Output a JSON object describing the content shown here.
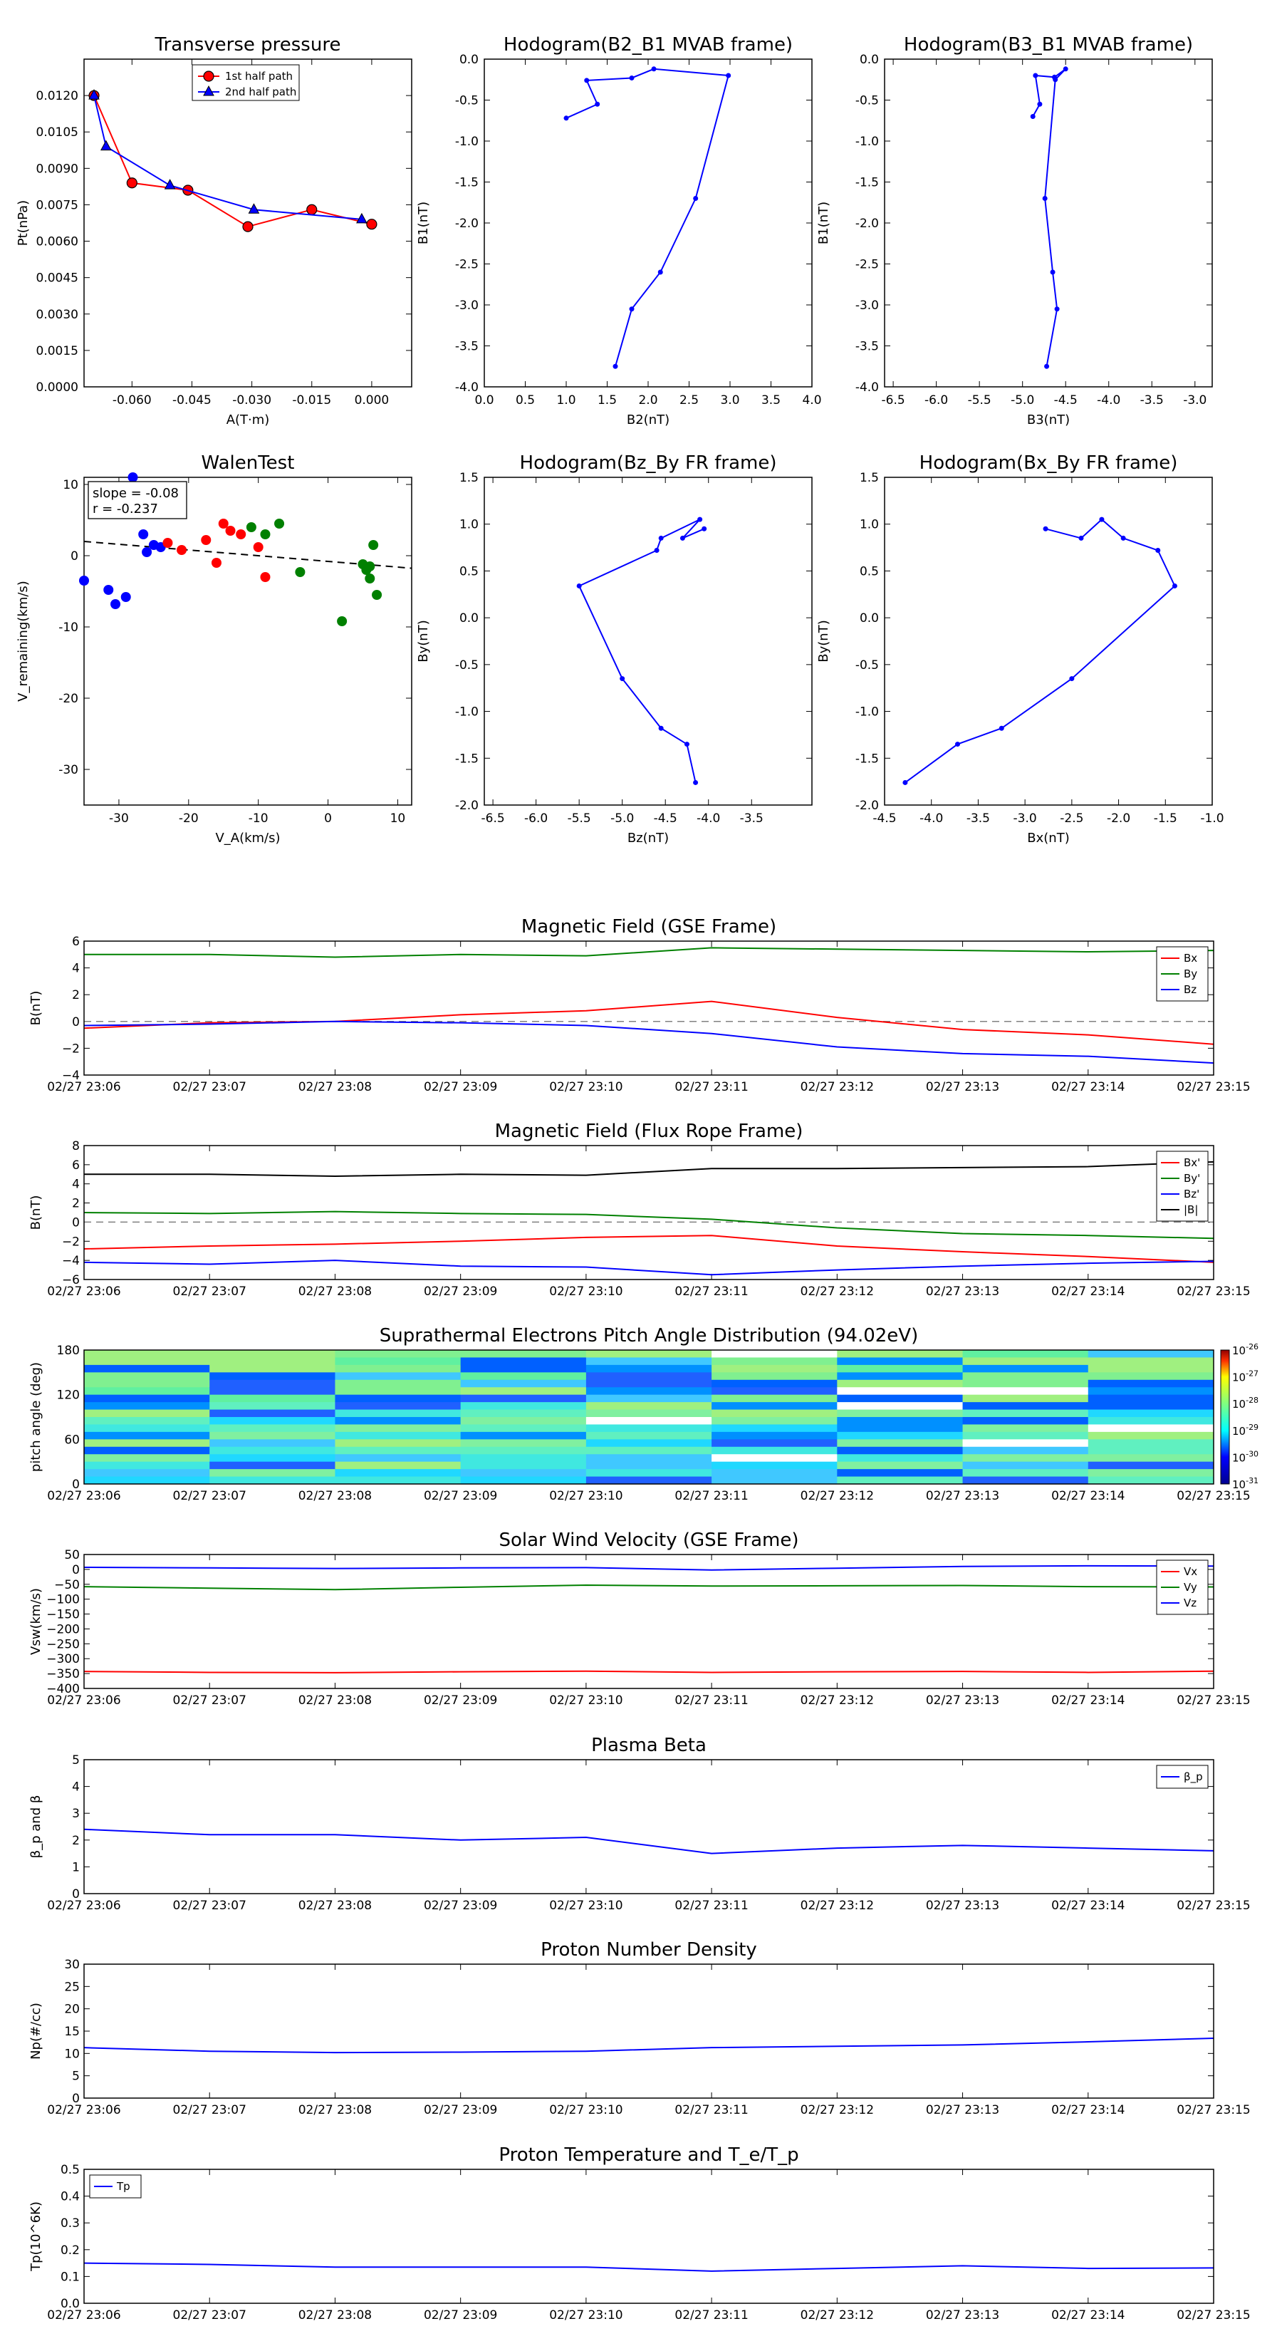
{
  "time_ticks": [
    "02/27 23:06",
    "02/27 23:07",
    "02/27 23:08",
    "02/27 23:09",
    "02/27 23:10",
    "02/27 23:11",
    "02/27 23:12",
    "02/27 23:13",
    "02/27 23:14",
    "02/27 23:15"
  ],
  "colors": {
    "red": "#ff0000",
    "green": "#008000",
    "blue": "#0000ff",
    "black": "#000000",
    "gray": "#808080"
  },
  "chart_data": [
    {
      "id": "pt",
      "type": "line",
      "title": "Transverse pressure",
      "xlabel": "A(T·m)",
      "ylabel": "Pt(nPa)",
      "xlim": [
        -0.072,
        0.01
      ],
      "ylim": [
        0,
        0.0135
      ],
      "xticks": [
        -0.06,
        -0.045,
        -0.03,
        -0.015,
        0.0
      ],
      "xtick_labels": [
        "-0.060",
        "-0.045",
        "-0.030",
        "-0.015",
        "0.000"
      ],
      "yticks": [
        0,
        0.0015,
        0.003,
        0.0045,
        0.006,
        0.0075,
        0.009,
        0.0105,
        0.012
      ],
      "ytick_labels": [
        "0.0000",
        "0.0015",
        "0.0030",
        "0.0045",
        "0.0060",
        "0.0075",
        "0.0090",
        "0.0105",
        "0.0120"
      ],
      "legend": "top-center",
      "series": [
        {
          "name": "1st half path",
          "color": "#ff0000",
          "marker": "circle",
          "x": [
            -0.0695,
            -0.06,
            -0.046,
            -0.031,
            -0.015,
            0.0
          ],
          "y": [
            0.012,
            0.0084,
            0.0081,
            0.0066,
            0.0073,
            0.0067
          ]
        },
        {
          "name": "2nd half path",
          "color": "#0000ff",
          "marker": "triangle",
          "x": [
            -0.0695,
            -0.0665,
            -0.0505,
            -0.0295,
            -0.0025
          ],
          "y": [
            0.012,
            0.0099,
            0.0083,
            0.0073,
            0.0069
          ]
        }
      ]
    },
    {
      "id": "h21",
      "type": "line",
      "title": "Hodogram(B2_B1 MVAB frame)",
      "xlabel": "B2(nT)",
      "ylabel": "B1(nT)",
      "xlim": [
        0,
        4
      ],
      "ylim": [
        -4,
        0
      ],
      "xticks": [
        0,
        0.5,
        1,
        1.5,
        2,
        2.5,
        3,
        3.5,
        4
      ],
      "xtick_labels": [
        "0.0",
        "0.5",
        "1.0",
        "1.5",
        "2.0",
        "2.5",
        "3.0",
        "3.5",
        "4.0"
      ],
      "yticks": [
        -4,
        -3.5,
        -3,
        -2.5,
        -2,
        -1.5,
        -1,
        -0.5,
        0
      ],
      "ytick_labels": [
        "-4.0",
        "-3.5",
        "-3.0",
        "-2.5",
        "-2.0",
        "-1.5",
        "-1.0",
        "-0.5",
        "0.0"
      ],
      "series": [
        {
          "color": "#0000ff",
          "marker": "dot",
          "x": [
            1.0,
            1.38,
            1.25,
            1.8,
            2.07,
            2.98,
            2.58,
            2.15,
            1.8,
            1.6
          ],
          "y": [
            -0.72,
            -0.55,
            -0.26,
            -0.23,
            -0.12,
            -0.2,
            -1.7,
            -2.6,
            -3.05,
            -3.75
          ]
        }
      ]
    },
    {
      "id": "h31",
      "type": "line",
      "title": "Hodogram(B3_B1 MVAB frame)",
      "xlabel": "B3(nT)",
      "ylabel": "B1(nT)",
      "xlim": [
        -6.6,
        -2.8
      ],
      "ylim": [
        -4,
        0
      ],
      "xticks": [
        -6.5,
        -6,
        -5.5,
        -5,
        -4.5,
        -4,
        -3.5,
        -3
      ],
      "xtick_labels": [
        "-6.5",
        "-6.0",
        "-5.5",
        "-5.0",
        "-4.5",
        "-4.0",
        "-3.5",
        "-3.0"
      ],
      "yticks": [
        -4,
        -3.5,
        -3,
        -2.5,
        -2,
        -1.5,
        -1,
        -0.5,
        0
      ],
      "ytick_labels": [
        "-4.0",
        "-3.5",
        "-3.0",
        "-2.5",
        "-2.0",
        "-1.5",
        "-1.0",
        "-0.5",
        "0.0"
      ],
      "series": [
        {
          "color": "#0000ff",
          "marker": "dot",
          "x": [
            -4.88,
            -4.8,
            -4.85,
            -4.63,
            -4.5,
            -4.62,
            -4.74,
            -4.65,
            -4.6,
            -4.72
          ],
          "y": [
            -0.7,
            -0.55,
            -0.2,
            -0.22,
            -0.12,
            -0.25,
            -1.7,
            -2.6,
            -3.05,
            -3.75
          ]
        }
      ]
    },
    {
      "id": "walen",
      "type": "scatter",
      "title": "WalenTest",
      "xlabel": "V_A(km/s)",
      "ylabel": "V_remaining(km/s)",
      "xlim": [
        -35,
        12
      ],
      "ylim": [
        -35,
        11
      ],
      "xticks": [
        -30,
        -20,
        -10,
        0,
        10
      ],
      "xtick_labels": [
        "-30",
        "-20",
        "-10",
        "0",
        "10"
      ],
      "yticks": [
        -30,
        -20,
        -10,
        0,
        10
      ],
      "ytick_labels": [
        "-30",
        "-20",
        "-10",
        "0",
        "10"
      ],
      "slope_text": "slope = -0.08",
      "r_text": "r = -0.237",
      "fit": {
        "slope": -0.08,
        "intercept": -0.8
      },
      "series": [
        {
          "color": "#0000ff",
          "x": [
            -35,
            -31.5,
            -30.5,
            -29,
            -28,
            -26.5,
            -26,
            -25,
            -24
          ],
          "y": [
            -3.5,
            -4.8,
            -6.8,
            -5.8,
            11,
            3,
            0.5,
            1.5,
            1.2
          ]
        },
        {
          "color": "#ff0000",
          "x": [
            -27,
            -23,
            -21,
            -17.5,
            -16,
            -15,
            -14,
            -12.5,
            -10,
            -9
          ],
          "y": [
            6,
            1.8,
            0.8,
            2.2,
            -1,
            4.5,
            3.5,
            3,
            1.2,
            -3
          ]
        },
        {
          "color": "#008000",
          "x": [
            -11,
            -9,
            -7,
            -4,
            2,
            5,
            5.5,
            6,
            6,
            6.5,
            7
          ],
          "y": [
            4,
            3,
            4.5,
            -2.3,
            -9.2,
            -1.2,
            -2,
            -3.2,
            -1.5,
            1.5,
            -5.5
          ]
        }
      ]
    },
    {
      "id": "hzy",
      "type": "line",
      "title": "Hodogram(Bz_By FR frame)",
      "xlabel": "Bz(nT)",
      "ylabel": "By(nT)",
      "xlim": [
        -6.6,
        -2.8
      ],
      "ylim": [
        -2,
        1.5
      ],
      "xticks": [
        -6.5,
        -6,
        -5.5,
        -5,
        -4.5,
        -4,
        -3.5
      ],
      "xtick_labels": [
        "-6.5",
        "-6.0",
        "-5.5",
        "-5.0",
        "-4.5",
        "-4.0",
        "-3.5"
      ],
      "yticks": [
        -2,
        -1.5,
        -1,
        -0.5,
        0,
        0.5,
        1,
        1.5
      ],
      "ytick_labels": [
        "-2.0",
        "-1.5",
        "-1.0",
        "-0.5",
        "0.0",
        "0.5",
        "1.0",
        "1.5"
      ],
      "series": [
        {
          "color": "#0000ff",
          "marker": "dot",
          "x": [
            -4.05,
            -4.3,
            -4.1,
            -4.55,
            -4.6,
            -5.5,
            -5.0,
            -4.55,
            -4.25,
            -4.15
          ],
          "y": [
            0.95,
            0.85,
            1.05,
            0.85,
            0.72,
            0.34,
            -0.65,
            -1.18,
            -1.35,
            -1.76
          ]
        }
      ]
    },
    {
      "id": "hxy",
      "type": "line",
      "title": "Hodogram(Bx_By FR frame)",
      "xlabel": "Bx(nT)",
      "ylabel": "By(nT)",
      "xlim": [
        -4.5,
        -1.0
      ],
      "ylim": [
        -2,
        1.5
      ],
      "xticks": [
        -4.5,
        -4,
        -3.5,
        -3,
        -2.5,
        -2,
        -1.5,
        -1
      ],
      "xtick_labels": [
        "-4.5",
        "-4.0",
        "-3.5",
        "-3.0",
        "-2.5",
        "-2.0",
        "-1.5",
        "-1.0"
      ],
      "yticks": [
        -2,
        -1.5,
        -1,
        -0.5,
        0,
        0.5,
        1,
        1.5
      ],
      "ytick_labels": [
        "-2.0",
        "-1.5",
        "-1.0",
        "-0.5",
        "0.0",
        "0.5",
        "1.0",
        "1.5"
      ],
      "series": [
        {
          "color": "#0000ff",
          "marker": "dot",
          "x": [
            -2.78,
            -2.4,
            -2.18,
            -1.95,
            -1.58,
            -1.4,
            -2.5,
            -3.25,
            -3.72,
            -4.28
          ],
          "y": [
            0.95,
            0.85,
            1.05,
            0.85,
            0.72,
            0.34,
            -0.65,
            -1.18,
            -1.35,
            -1.76
          ]
        }
      ]
    },
    {
      "id": "bgse",
      "type": "line",
      "title": "Magnetic Field (GSE Frame)",
      "ylabel": "B(nT)",
      "ylim": [
        -4,
        6
      ],
      "yticks": [
        -4,
        -2,
        0,
        2,
        4,
        6
      ],
      "ytick_labels": [
        "−4",
        "−2",
        "0",
        "2",
        "4",
        "6"
      ],
      "legend": "top-right",
      "zero_line": true,
      "series": [
        {
          "name": "Bx",
          "color": "#ff0000",
          "values": [
            -0.5,
            -0.1,
            0.0,
            0.5,
            0.8,
            1.5,
            0.3,
            -0.6,
            -1.0,
            -1.7
          ]
        },
        {
          "name": "By",
          "color": "#008000",
          "values": [
            5.0,
            5.0,
            4.8,
            5.0,
            4.9,
            5.5,
            5.4,
            5.3,
            5.2,
            5.3
          ]
        },
        {
          "name": "Bz",
          "color": "#0000ff",
          "values": [
            -0.3,
            -0.2,
            0.0,
            -0.1,
            -0.3,
            -0.9,
            -1.9,
            -2.4,
            -2.6,
            -3.1
          ]
        }
      ]
    },
    {
      "id": "bfr",
      "type": "line",
      "title": "Magnetic Field (Flux Rope Frame)",
      "ylabel": "B(nT)",
      "ylim": [
        -6,
        8
      ],
      "yticks": [
        -6,
        -4,
        -2,
        0,
        2,
        4,
        6,
        8
      ],
      "ytick_labels": [
        "−6",
        "−4",
        "−2",
        "0",
        "2",
        "4",
        "6",
        "8"
      ],
      "legend": "top-right",
      "zero_line": true,
      "series": [
        {
          "name": "Bx'",
          "color": "#ff0000",
          "values": [
            -2.8,
            -2.5,
            -2.3,
            -2.0,
            -1.6,
            -1.4,
            -2.5,
            -3.1,
            -3.6,
            -4.2
          ]
        },
        {
          "name": "By'",
          "color": "#008000",
          "values": [
            1.0,
            0.9,
            1.1,
            0.9,
            0.8,
            0.3,
            -0.6,
            -1.2,
            -1.4,
            -1.7
          ]
        },
        {
          "name": "Bz'",
          "color": "#0000ff",
          "values": [
            -4.2,
            -4.4,
            -4.0,
            -4.6,
            -4.7,
            -5.5,
            -5.0,
            -4.6,
            -4.3,
            -4.1
          ]
        },
        {
          "name": "|B|",
          "color": "#000000",
          "values": [
            5.0,
            5.0,
            4.8,
            5.0,
            4.9,
            5.6,
            5.6,
            5.7,
            5.8,
            6.3
          ]
        }
      ]
    },
    {
      "id": "pad",
      "type": "heatmap",
      "title": "Suprathermal Electrons Pitch Angle Distribution (94.02eV)",
      "ylabel": "pitch angle (deg)",
      "ylim": [
        0,
        180
      ],
      "yticks": [
        0,
        60,
        120,
        180
      ],
      "ytick_labels": [
        "0",
        "60",
        "120",
        "180"
      ],
      "colorbar_ticks": [
        "10^-26",
        "10^-27",
        "10^-28",
        "10^-29",
        "10^-30",
        "10^-31"
      ],
      "columns": 9,
      "rows": 18
    },
    {
      "id": "vsw",
      "type": "line",
      "title": "Solar Wind Velocity (GSE Frame)",
      "ylabel": "Vsw(km/s)",
      "ylim": [
        -400,
        50
      ],
      "yticks": [
        -400,
        -350,
        -300,
        -250,
        -200,
        -150,
        -100,
        -50,
        0,
        50
      ],
      "ytick_labels": [
        "−400",
        "−350",
        "−300",
        "−250",
        "−200",
        "−150",
        "−100",
        "−50",
        "0",
        "50"
      ],
      "legend": "top-right",
      "series": [
        {
          "name": "Vx",
          "color": "#ff0000",
          "values": [
            -343,
            -346,
            -347,
            -344,
            -342,
            -346,
            -344,
            -343,
            -346,
            -342
          ]
        },
        {
          "name": "Vy",
          "color": "#008000",
          "values": [
            -58,
            -63,
            -68,
            -60,
            -53,
            -56,
            -55,
            -54,
            -58,
            -59
          ]
        },
        {
          "name": "Vz",
          "color": "#0000ff",
          "values": [
            7,
            5,
            3,
            5,
            6,
            -2,
            4,
            10,
            12,
            11
          ]
        }
      ]
    },
    {
      "id": "beta",
      "type": "line",
      "title": "Plasma Beta",
      "ylabel": "β_p and β",
      "ylim": [
        0,
        5
      ],
      "yticks": [
        0,
        1,
        2,
        3,
        4,
        5
      ],
      "ytick_labels": [
        "0",
        "1",
        "2",
        "3",
        "4",
        "5"
      ],
      "legend": "top-right",
      "series": [
        {
          "name": "β_p",
          "color": "#0000ff",
          "values": [
            2.4,
            2.2,
            2.2,
            2.0,
            2.1,
            1.5,
            1.7,
            1.8,
            1.7,
            1.6
          ]
        }
      ]
    },
    {
      "id": "np",
      "type": "line",
      "title": "Proton Number Density",
      "ylabel": "Np(#/cc)",
      "ylim": [
        0,
        30
      ],
      "yticks": [
        0,
        5,
        10,
        15,
        20,
        25,
        30
      ],
      "ytick_labels": [
        "0",
        "5",
        "10",
        "15",
        "20",
        "25",
        "30"
      ],
      "series": [
        {
          "color": "#0000ff",
          "values": [
            11.3,
            10.5,
            10.2,
            10.3,
            10.5,
            11.3,
            11.6,
            11.9,
            12.6,
            13.4
          ]
        }
      ]
    },
    {
      "id": "tp",
      "type": "line",
      "title": "Proton Temperature and T_e/T_p",
      "ylabel": "Tp(10^6K)",
      "ylim": [
        0,
        0.5
      ],
      "yticks": [
        0,
        0.1,
        0.2,
        0.3,
        0.4,
        0.5
      ],
      "ytick_labels": [
        "0.0",
        "0.1",
        "0.2",
        "0.3",
        "0.4",
        "0.5"
      ],
      "legend": "top-left",
      "series": [
        {
          "name": "Tp",
          "color": "#0000ff",
          "values": [
            0.15,
            0.145,
            0.135,
            0.135,
            0.135,
            0.12,
            0.13,
            0.14,
            0.13,
            0.132
          ]
        }
      ]
    }
  ]
}
